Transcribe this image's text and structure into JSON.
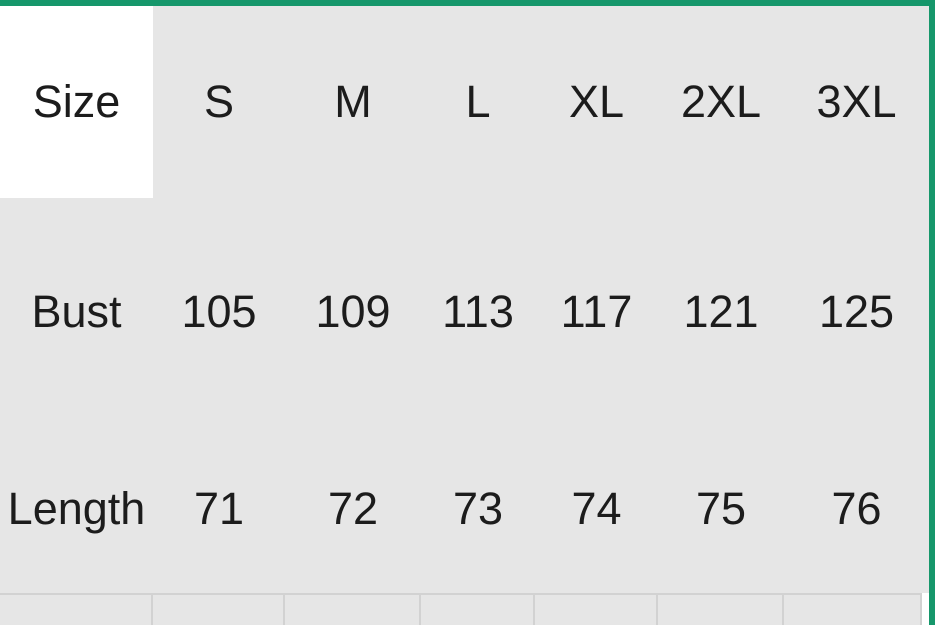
{
  "theme": {
    "accent_green": "#16976B",
    "table_fill": "#E6E6E6",
    "gridline_color": "#D2D2D2",
    "highlight_cell_fill": "#FFFFFF",
    "text_color": "#1C1C1C"
  },
  "size_chart": {
    "header": {
      "label": "Size",
      "sizes": [
        "S",
        "M",
        "L",
        "XL",
        "2XL",
        "3XL"
      ]
    },
    "rows": [
      {
        "label": "Bust",
        "values": [
          "105",
          "109",
          "113",
          "117",
          "121",
          "125"
        ]
      },
      {
        "label": "Length",
        "values": [
          "71",
          "72",
          "73",
          "74",
          "75",
          "76"
        ]
      }
    ]
  }
}
